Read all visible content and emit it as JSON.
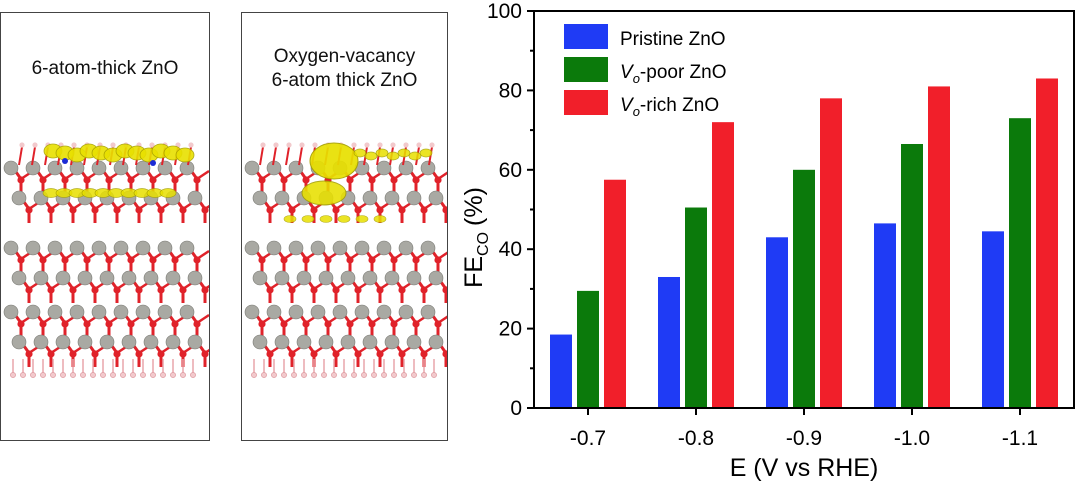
{
  "panels": [
    {
      "title_lines": [
        "6-atom-thick ZnO"
      ]
    },
    {
      "title_lines": [
        "Oxygen-vacancy",
        "6-atom thick ZnO"
      ]
    }
  ],
  "colors": {
    "zn_atom": "#a9a9a3",
    "o_atom": "#e0222a",
    "h_atom": "#f2c9cc",
    "charge_density": "#e8e000",
    "pristine": "#1f3bf5",
    "vo_poor": "#0b7a0b",
    "vo_rich": "#f11f2a"
  },
  "chart_data": {
    "type": "bar",
    "categories": [
      "-0.7",
      "-0.8",
      "-0.9",
      "-1.0",
      "-1.1"
    ],
    "series": [
      {
        "name": "Pristine ZnO",
        "name_parts": [
          "Pristine ZnO"
        ],
        "color": "#1f3bf5",
        "values": [
          18.5,
          33,
          43,
          46.5,
          44.5
        ]
      },
      {
        "name": "Vo-poor ZnO",
        "name_parts": [
          "V",
          "o",
          "-poor ZnO"
        ],
        "color": "#0b7a0b",
        "values": [
          29.5,
          50.5,
          60,
          66.5,
          73
        ]
      },
      {
        "name": "Vo-rich ZnO",
        "name_parts": [
          "V",
          "o",
          "-rich ZnO"
        ],
        "color": "#f11f2a",
        "values": [
          57.5,
          72,
          78,
          81,
          83
        ]
      }
    ],
    "ylabel_main": "FE",
    "ylabel_sub": "CO",
    "ylabel_unit": "(%)",
    "xlabel": "E (V vs RHE)",
    "ylim": [
      0,
      100
    ],
    "yticks": [
      "0",
      "20",
      "40",
      "60",
      "80",
      "100"
    ],
    "legend_position": "top-left",
    "grid": false
  }
}
